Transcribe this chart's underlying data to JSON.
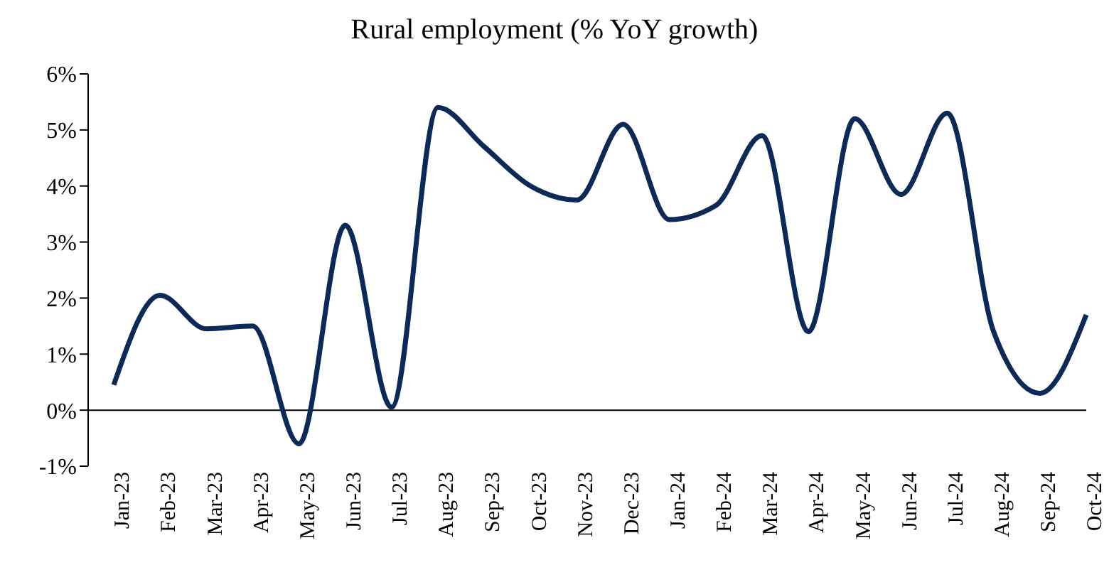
{
  "chart_data": {
    "type": "line",
    "title": "Rural employment (% YoY growth)",
    "categories": [
      "Jan-23",
      "Feb-23",
      "Mar-23",
      "Apr-23",
      "May-23",
      "Jun-23",
      "Jul-23",
      "Aug-23",
      "Sep-23",
      "Oct-23",
      "Nov-23",
      "Dec-23",
      "Jan-24",
      "Feb-24",
      "Mar-24",
      "Apr-24",
      "May-24",
      "Jun-24",
      "Jul-24",
      "Aug-24",
      "Sep-24",
      "Oct-24"
    ],
    "series": [
      {
        "color": "#0c2a57",
        "values": [
          0.45,
          2.05,
          1.45,
          1.5,
          -0.6,
          3.3,
          0.05,
          5.4,
          4.7,
          4.0,
          3.75,
          5.1,
          3.4,
          3.65,
          4.9,
          1.4,
          5.2,
          3.85,
          5.3,
          1.4,
          0.3,
          1.7
        ]
      }
    ],
    "ylim": [
      -1,
      6
    ],
    "yticks": [
      {
        "value": -1,
        "label": "-1%"
      },
      {
        "value": 0,
        "label": "0%"
      },
      {
        "value": 1,
        "label": "1%"
      },
      {
        "value": 2,
        "label": "2%"
      },
      {
        "value": 3,
        "label": "3%"
      },
      {
        "value": 4,
        "label": "4%"
      },
      {
        "value": 5,
        "label": "5%"
      },
      {
        "value": 6,
        "label": "6%"
      }
    ],
    "ref_lines": [
      {
        "axis": "y",
        "value": 0,
        "color": "#000000"
      }
    ],
    "grid": false,
    "legend": false,
    "marker": "none",
    "line_style": "solid"
  }
}
